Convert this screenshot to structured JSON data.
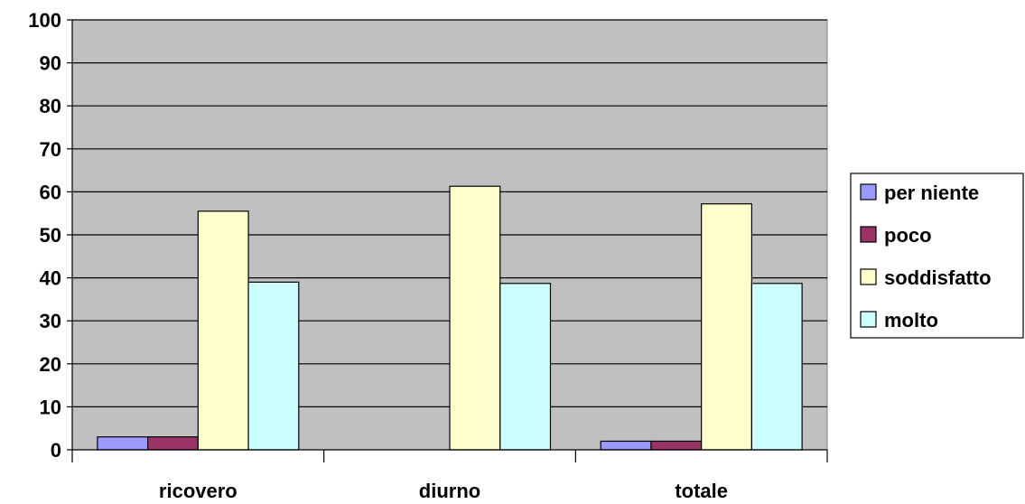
{
  "chart_data": {
    "type": "bar",
    "categories": [
      "ricovero",
      "diurno",
      "totale"
    ],
    "series": [
      {
        "name": "per niente",
        "values": [
          3,
          0,
          2
        ],
        "color": "#9999FF"
      },
      {
        "name": "poco",
        "values": [
          3,
          0,
          2
        ],
        "color": "#993366"
      },
      {
        "name": "soddisfatto",
        "values": [
          55.5,
          61.3,
          57.2
        ],
        "color": "#FFFFCC"
      },
      {
        "name": "molto",
        "values": [
          39,
          38.7,
          38.7
        ],
        "color": "#CCFFFF"
      }
    ],
    "title": "",
    "xlabel": "",
    "ylabel": "",
    "ylim": [
      0,
      100
    ],
    "yticks": [
      "0",
      "10",
      "20",
      "30",
      "40",
      "50",
      "60",
      "70",
      "80",
      "90",
      "100"
    ],
    "grid": true,
    "legend_position": "right",
    "plot_background": "#C0C0C0"
  }
}
